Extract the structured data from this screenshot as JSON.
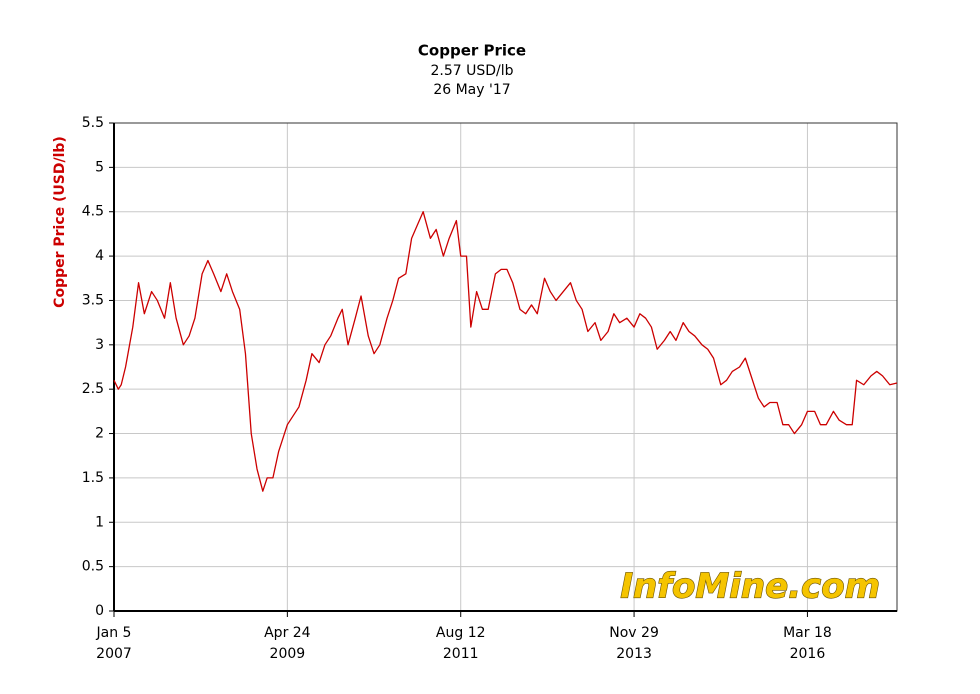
{
  "chart_data": {
    "type": "line",
    "title": "Copper Price",
    "subtitle": "2.57 USD/lb",
    "date_label": "26 May '17",
    "y_label": "Copper Price (USD/lb)",
    "watermark": "InfoMine.com",
    "grid": true,
    "xlim": [
      "2007-01-05",
      "2017-05-26"
    ],
    "xticks": [
      {
        "value": "2007-01-05",
        "label": [
          "Jan 5",
          "2007"
        ]
      },
      {
        "value": "2009-04-24",
        "label": [
          "Apr 24",
          "2009"
        ]
      },
      {
        "value": "2011-08-12",
        "label": [
          "Aug 12",
          "2011"
        ]
      },
      {
        "value": "2013-11-29",
        "label": [
          "Nov 29",
          "2013"
        ]
      },
      {
        "value": "2016-03-18",
        "label": [
          "Mar 18",
          "2016"
        ]
      }
    ],
    "ylim": [
      0,
      5.5
    ],
    "yticks": [
      0,
      0.5,
      1,
      1.5,
      2,
      2.5,
      3,
      3.5,
      4,
      4.5,
      5,
      5.5
    ],
    "x": [
      "2007-01-05",
      "2007-01-26",
      "2007-02-09",
      "2007-03-02",
      "2007-04-06",
      "2007-05-04",
      "2007-06-01",
      "2007-07-06",
      "2007-08-03",
      "2007-09-07",
      "2007-10-05",
      "2007-11-02",
      "2007-12-07",
      "2008-01-04",
      "2008-02-01",
      "2008-03-07",
      "2008-04-04",
      "2008-05-02",
      "2008-06-06",
      "2008-07-04",
      "2008-08-01",
      "2008-09-05",
      "2008-10-03",
      "2008-10-31",
      "2008-11-28",
      "2008-12-26",
      "2009-01-16",
      "2009-02-13",
      "2009-03-13",
      "2009-04-24",
      "2009-05-22",
      "2009-06-19",
      "2009-07-24",
      "2009-08-21",
      "2009-09-25",
      "2009-10-23",
      "2009-11-20",
      "2009-12-25",
      "2010-01-15",
      "2010-02-12",
      "2010-03-19",
      "2010-04-16",
      "2010-05-21",
      "2010-06-18",
      "2010-07-16",
      "2010-08-20",
      "2010-09-17",
      "2010-10-15",
      "2010-11-19",
      "2010-12-17",
      "2011-01-14",
      "2011-02-11",
      "2011-03-18",
      "2011-04-15",
      "2011-05-20",
      "2011-06-17",
      "2011-07-22",
      "2011-08-12",
      "2011-09-09",
      "2011-09-30",
      "2011-10-28",
      "2011-11-25",
      "2011-12-23",
      "2012-01-27",
      "2012-02-24",
      "2012-03-23",
      "2012-04-20",
      "2012-05-25",
      "2012-06-22",
      "2012-07-20",
      "2012-08-17",
      "2012-09-21",
      "2012-10-19",
      "2012-11-16",
      "2012-12-21",
      "2013-01-25",
      "2013-02-22",
      "2013-03-22",
      "2013-04-19",
      "2013-05-24",
      "2013-06-21",
      "2013-07-26",
      "2013-08-23",
      "2013-09-20",
      "2013-10-25",
      "2013-11-29",
      "2013-12-27",
      "2014-01-24",
      "2014-02-21",
      "2014-03-21",
      "2014-04-25",
      "2014-05-23",
      "2014-06-20",
      "2014-07-25",
      "2014-08-22",
      "2014-09-19",
      "2014-10-24",
      "2014-11-21",
      "2014-12-19",
      "2015-01-23",
      "2015-02-20",
      "2015-03-20",
      "2015-04-24",
      "2015-05-22",
      "2015-06-19",
      "2015-07-24",
      "2015-08-21",
      "2015-09-18",
      "2015-10-23",
      "2015-11-20",
      "2015-12-18",
      "2016-01-15",
      "2016-02-19",
      "2016-03-18",
      "2016-04-22",
      "2016-05-20",
      "2016-06-17",
      "2016-07-22",
      "2016-08-19",
      "2016-09-23",
      "2016-10-21",
      "2016-11-11",
      "2016-12-16",
      "2017-01-20",
      "2017-02-17",
      "2017-03-17",
      "2017-04-21",
      "2017-05-26"
    ],
    "series": [
      {
        "name": "Copper Price",
        "color": "#cc0000",
        "values": [
          2.6,
          2.5,
          2.55,
          2.75,
          3.2,
          3.7,
          3.35,
          3.6,
          3.5,
          3.3,
          3.7,
          3.3,
          3.0,
          3.1,
          3.3,
          3.8,
          3.95,
          3.8,
          3.6,
          3.8,
          3.6,
          3.4,
          2.9,
          2.0,
          1.6,
          1.35,
          1.5,
          1.5,
          1.8,
          2.1,
          2.2,
          2.3,
          2.6,
          2.9,
          2.8,
          3.0,
          3.1,
          3.3,
          3.4,
          3.0,
          3.3,
          3.55,
          3.1,
          2.9,
          3.0,
          3.3,
          3.5,
          3.75,
          3.8,
          4.2,
          4.35,
          4.5,
          4.2,
          4.3,
          4.0,
          4.2,
          4.4,
          4.0,
          4.0,
          3.2,
          3.6,
          3.4,
          3.4,
          3.8,
          3.85,
          3.85,
          3.7,
          3.4,
          3.35,
          3.45,
          3.35,
          3.75,
          3.6,
          3.5,
          3.6,
          3.7,
          3.5,
          3.4,
          3.15,
          3.25,
          3.05,
          3.15,
          3.35,
          3.25,
          3.3,
          3.2,
          3.35,
          3.3,
          3.2,
          2.95,
          3.05,
          3.15,
          3.05,
          3.25,
          3.15,
          3.1,
          3.0,
          2.95,
          2.85,
          2.55,
          2.6,
          2.7,
          2.75,
          2.85,
          2.65,
          2.4,
          2.3,
          2.35,
          2.35,
          2.1,
          2.1,
          2.0,
          2.1,
          2.25,
          2.25,
          2.1,
          2.1,
          2.25,
          2.15,
          2.1,
          2.1,
          2.6,
          2.55,
          2.65,
          2.7,
          2.65,
          2.55,
          2.57
        ]
      }
    ]
  }
}
